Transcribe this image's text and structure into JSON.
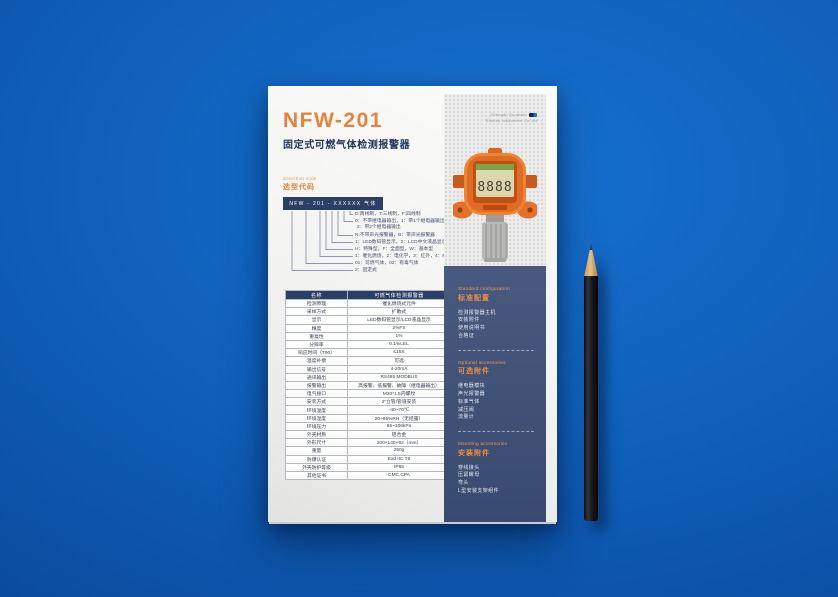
{
  "document": {
    "company": {
      "line1": "Chengdu Southern",
      "line2": "Electric Instrument Co.,ltd"
    },
    "title": "NFW-201",
    "subtitle": "固定式可燃气体检测报警器",
    "selection_code": {
      "label_en": "Selection code",
      "label_zh": "选型代码",
      "code_bar": "NFW - 201 - XXXXXX 气体",
      "tree_rows": [
        "D:两线制，T:三线制，F:四线制",
        "0：不带继电器输出，1：带1个继电器输出，",
        "2：带2个继电器输出",
        "N:不带声光报警器，B：带声光报警器",
        "1：LED数码管显示，2：LCD中文液晶显示",
        "H：特殊型，F：全面型，W：基本型",
        "1：催化燃烧，2：电化学，3：红外，4：PID",
        "01：可燃气体，02：有毒气体",
        "2：固定式"
      ]
    },
    "spec_table": {
      "header": [
        "名称",
        "可燃气体检测报警器"
      ],
      "rows": [
        [
          "检测原理",
          "催化燃烧式元件"
        ],
        [
          "采样方式",
          "扩散式"
        ],
        [
          "显示",
          "LED数码管显示/LCD液晶显示"
        ],
        [
          "精度",
          "2%FS"
        ],
        [
          "重复性",
          "1%"
        ],
        [
          "分辨率",
          "0.1%LEL"
        ],
        [
          "响应时间（T90）",
          "≤15S"
        ],
        [
          "温度补偿",
          "可选"
        ],
        [
          "输出信号",
          "4-20mA"
        ],
        [
          "通讯输出",
          "RS485 MODBUS"
        ],
        [
          "报警输出",
          "高报警、低报警、故障（继电器输出）"
        ],
        [
          "电气接口",
          "M20*1.5内螺纹"
        ],
        [
          "安装方式",
          "2\"立管/管道安装"
        ],
        [
          "环境温度",
          "-40~70℃"
        ],
        [
          "环境湿度",
          "20~95%RH（无结露）"
        ],
        [
          "环境压力",
          "86~106kPa"
        ],
        [
          "外壳材质",
          "铝合金"
        ],
        [
          "外形尺寸",
          "200×140×92（mm）"
        ],
        [
          "重量",
          "250g"
        ],
        [
          "防爆认证",
          "Exd IIC T6"
        ],
        [
          "外壳防护等级",
          "IP65"
        ],
        [
          "其他证书",
          "CMC,CPA"
        ]
      ]
    },
    "sidebar_sections": [
      {
        "title_en": "Standard configuration",
        "title_zh": "标准配置",
        "items": [
          "检测报警器主机",
          "安装附件",
          "使用说明书",
          "合格证"
        ]
      },
      {
        "title_en": "Optional accessories",
        "title_zh": "可选附件",
        "items": [
          "继电器模块",
          "声光报警器",
          "标准气体",
          "减压阀",
          "流量计"
        ]
      },
      {
        "title_en": "Mounting accessories",
        "title_zh": "安装附件",
        "items": [
          "穿线接头",
          "压紧螺母",
          "弯头",
          "L型安装支架组件"
        ]
      }
    ],
    "device": {
      "display_digits": "8888"
    },
    "colors": {
      "accent_orange": "#e8823b",
      "navy": "#2b3e66",
      "sidebar_navy": "#41517a",
      "background_blue": "#0f60ba"
    }
  }
}
